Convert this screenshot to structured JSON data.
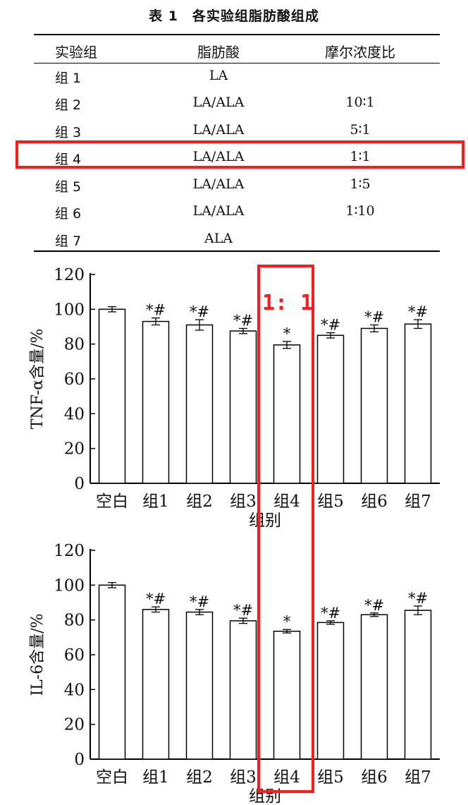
{
  "table": {
    "title": "表 1　各实验组脂肪酸组成",
    "headers": [
      "实验组",
      "脂肪酸",
      "摩尔浓度比"
    ],
    "rows": [
      {
        "group": "组 1",
        "fatty_acid": "LA",
        "ratio": ""
      },
      {
        "group": "组 2",
        "fatty_acid": "LA/ALA",
        "ratio": "10∶1"
      },
      {
        "group": "组 3",
        "fatty_acid": "LA/ALA",
        "ratio": "5∶1"
      },
      {
        "group": "组 4",
        "fatty_acid": "LA/ALA",
        "ratio": "1∶1"
      },
      {
        "group": "组 5",
        "fatty_acid": "LA/ALA",
        "ratio": "1∶5"
      },
      {
        "group": "组 6",
        "fatty_acid": "LA/ALA",
        "ratio": "1∶10"
      },
      {
        "group": "组 7",
        "fatty_acid": "ALA",
        "ratio": ""
      }
    ],
    "highlight_row_index": 3
  },
  "highlight": {
    "label": "1: 1",
    "color": "#ff1a1a"
  },
  "chart_data": [
    {
      "type": "bar",
      "categories": [
        "空白",
        "组1",
        "组2",
        "组3",
        "组4",
        "组5",
        "组6",
        "组7"
      ],
      "values": [
        100,
        93,
        91,
        87.5,
        79.5,
        85,
        89,
        91.5
      ],
      "errors": [
        1.5,
        2,
        3,
        1.5,
        2,
        1.5,
        2,
        2.5
      ],
      "annotations": [
        "",
        "*#",
        "*#",
        "*#",
        "*",
        "*#",
        "*#",
        "*#"
      ],
      "xlabel": "组别",
      "ylabel": "TNF-α含量/%",
      "ylim": [
        0,
        120
      ],
      "yticks": [
        0,
        20,
        40,
        60,
        80,
        100,
        120
      ],
      "grid": false
    },
    {
      "type": "bar",
      "categories": [
        "空白",
        "组1",
        "组2",
        "组3",
        "组4",
        "组5",
        "组6",
        "组7"
      ],
      "values": [
        100,
        86,
        84.5,
        79.5,
        73.5,
        78.5,
        83,
        85.5
      ],
      "errors": [
        1.5,
        1.5,
        1.5,
        1.5,
        1,
        1,
        1,
        2.5
      ],
      "annotations": [
        "",
        "*#",
        "*#",
        "*#",
        "*",
        "*#",
        "*#",
        "*#"
      ],
      "xlabel": "组别",
      "ylabel": "IL-6含量/%",
      "ylim": [
        0,
        120
      ],
      "yticks": [
        0,
        20,
        40,
        60,
        80,
        100,
        120
      ],
      "grid": false
    }
  ]
}
